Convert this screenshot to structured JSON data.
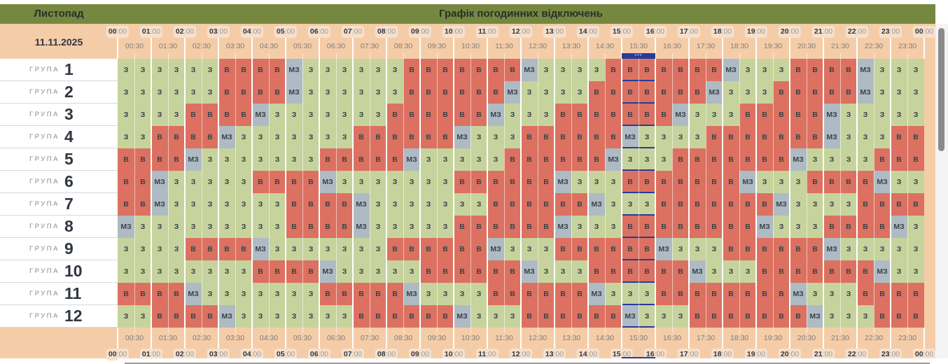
{
  "header": {
    "month": "Листопад",
    "title": "Графік погодинних відключень",
    "date": "11.11.2025"
  },
  "time": {
    "hours": [
      "00",
      "01",
      "02",
      "03",
      "04",
      "05",
      "06",
      "07",
      "08",
      "09",
      "10",
      "11",
      "12",
      "13",
      "14",
      "15",
      "16",
      "17",
      "18",
      "19",
      "20",
      "21",
      "22",
      "23",
      "00"
    ],
    "minutes_suffix": ":00",
    "half_labels": [
      "00:30",
      "01:30",
      "02:30",
      "03:30",
      "04:30",
      "05:30",
      "06:30",
      "07:30",
      "08:30",
      "09:30",
      "10:30",
      "11:30",
      "12:30",
      "13:30",
      "14:30",
      "15:30",
      "16:30",
      "17:30",
      "18:30",
      "19:30",
      "20:30",
      "21:30",
      "22:30",
      "23:30"
    ],
    "current_hour_index": 15,
    "current_marker": "•••"
  },
  "group_word": "ГРУПА",
  "colors": {
    "З": "#c6d39c",
    "В": "#dc7161",
    "МЗ": "#aebbc4",
    "header": "#76883f",
    "band": "#f4cda8",
    "now": "#2a3a99"
  },
  "groups": [
    {
      "number": "1",
      "cells": [
        "З",
        "З",
        "З",
        "З",
        "З",
        "З",
        "В",
        "В",
        "В",
        "В",
        "МЗ",
        "З",
        "З",
        "З",
        "З",
        "З",
        "З",
        "В",
        "В",
        "В",
        "В",
        "В",
        "В",
        "В",
        "МЗ",
        "З",
        "З",
        "З",
        "З",
        "В",
        "В",
        "В",
        "В",
        "В",
        "В",
        "В",
        "МЗ",
        "З",
        "З",
        "З",
        "В",
        "В",
        "В",
        "В",
        "МЗ",
        "З",
        "З",
        "З"
      ]
    },
    {
      "number": "2",
      "cells": [
        "З",
        "З",
        "З",
        "З",
        "З",
        "З",
        "В",
        "В",
        "В",
        "В",
        "МЗ",
        "З",
        "З",
        "З",
        "З",
        "З",
        "З",
        "В",
        "В",
        "В",
        "В",
        "В",
        "В",
        "МЗ",
        "З",
        "З",
        "З",
        "З",
        "В",
        "В",
        "В",
        "В",
        "В",
        "В",
        "В",
        "МЗ",
        "З",
        "З",
        "З",
        "В",
        "В",
        "В",
        "В",
        "В",
        "МЗ",
        "З",
        "З",
        "З"
      ]
    },
    {
      "number": "3",
      "cells": [
        "З",
        "З",
        "З",
        "З",
        "В",
        "В",
        "В",
        "В",
        "МЗ",
        "З",
        "З",
        "З",
        "З",
        "З",
        "З",
        "З",
        "В",
        "В",
        "В",
        "В",
        "В",
        "В",
        "МЗ",
        "З",
        "З",
        "З",
        "В",
        "В",
        "В",
        "В",
        "В",
        "В",
        "В",
        "МЗ",
        "З",
        "З",
        "З",
        "В",
        "В",
        "В",
        "В",
        "В",
        "МЗ",
        "З",
        "З",
        "З",
        "З",
        "З"
      ]
    },
    {
      "number": "4",
      "cells": [
        "З",
        "З",
        "В",
        "В",
        "В",
        "В",
        "МЗ",
        "З",
        "З",
        "З",
        "З",
        "З",
        "З",
        "З",
        "В",
        "В",
        "В",
        "В",
        "В",
        "В",
        "МЗ",
        "З",
        "З",
        "З",
        "В",
        "В",
        "В",
        "В",
        "В",
        "В",
        "МЗ",
        "З",
        "З",
        "З",
        "З",
        "В",
        "В",
        "В",
        "В",
        "В",
        "В",
        "В",
        "МЗ",
        "З",
        "З",
        "З",
        "В",
        "В"
      ]
    },
    {
      "number": "5",
      "cells": [
        "В",
        "В",
        "В",
        "В",
        "МЗ",
        "З",
        "З",
        "З",
        "З",
        "З",
        "З",
        "З",
        "В",
        "В",
        "В",
        "В",
        "В",
        "МЗ",
        "З",
        "З",
        "З",
        "З",
        "З",
        "В",
        "В",
        "В",
        "В",
        "В",
        "В",
        "МЗ",
        "З",
        "З",
        "З",
        "В",
        "В",
        "В",
        "В",
        "В",
        "В",
        "В",
        "МЗ",
        "З",
        "З",
        "З",
        "З",
        "В",
        "В",
        "В"
      ]
    },
    {
      "number": "6",
      "cells": [
        "В",
        "В",
        "МЗ",
        "З",
        "З",
        "З",
        "З",
        "З",
        "В",
        "В",
        "В",
        "В",
        "МЗ",
        "З",
        "З",
        "З",
        "З",
        "З",
        "З",
        "З",
        "В",
        "В",
        "В",
        "В",
        "В",
        "В",
        "МЗ",
        "З",
        "З",
        "З",
        "В",
        "В",
        "В",
        "В",
        "В",
        "В",
        "В",
        "МЗ",
        "З",
        "З",
        "З",
        "В",
        "В",
        "В",
        "В",
        "МЗ",
        "З",
        "З"
      ]
    },
    {
      "number": "7",
      "cells": [
        "В",
        "В",
        "МЗ",
        "З",
        "З",
        "З",
        "З",
        "З",
        "З",
        "З",
        "В",
        "В",
        "В",
        "В",
        "МЗ",
        "З",
        "З",
        "З",
        "З",
        "З",
        "З",
        "З",
        "В",
        "В",
        "В",
        "В",
        "В",
        "В",
        "МЗ",
        "З",
        "З",
        "З",
        "В",
        "В",
        "В",
        "В",
        "В",
        "В",
        "В",
        "МЗ",
        "З",
        "З",
        "З",
        "З",
        "В",
        "В",
        "В",
        "В"
      ]
    },
    {
      "number": "8",
      "cells": [
        "МЗ",
        "З",
        "З",
        "З",
        "З",
        "З",
        "З",
        "З",
        "З",
        "З",
        "В",
        "В",
        "В",
        "В",
        "МЗ",
        "З",
        "З",
        "З",
        "З",
        "З",
        "В",
        "В",
        "В",
        "В",
        "В",
        "В",
        "МЗ",
        "З",
        "З",
        "З",
        "В",
        "В",
        "В",
        "В",
        "В",
        "В",
        "В",
        "В",
        "МЗ",
        "З",
        "З",
        "З",
        "В",
        "В",
        "В",
        "В",
        "МЗ",
        "З"
      ]
    },
    {
      "number": "9",
      "cells": [
        "З",
        "З",
        "З",
        "З",
        "В",
        "В",
        "В",
        "В",
        "МЗ",
        "З",
        "З",
        "З",
        "З",
        "З",
        "З",
        "З",
        "В",
        "В",
        "В",
        "В",
        "В",
        "В",
        "МЗ",
        "З",
        "З",
        "З",
        "В",
        "В",
        "В",
        "В",
        "В",
        "В",
        "МЗ",
        "З",
        "З",
        "З",
        "В",
        "В",
        "В",
        "В",
        "В",
        "В",
        "МЗ",
        "З",
        "З",
        "З",
        "З",
        "З"
      ]
    },
    {
      "number": "10",
      "cells": [
        "З",
        "З",
        "З",
        "З",
        "З",
        "З",
        "З",
        "З",
        "В",
        "В",
        "В",
        "В",
        "МЗ",
        "З",
        "З",
        "З",
        "З",
        "З",
        "В",
        "В",
        "В",
        "В",
        "В",
        "В",
        "МЗ",
        "З",
        "З",
        "З",
        "В",
        "В",
        "В",
        "В",
        "В",
        "В",
        "МЗ",
        "З",
        "З",
        "З",
        "В",
        "В",
        "В",
        "В",
        "В",
        "В",
        "В",
        "МЗ",
        "З",
        "З"
      ]
    },
    {
      "number": "11",
      "cells": [
        "В",
        "В",
        "В",
        "В",
        "МЗ",
        "З",
        "З",
        "З",
        "З",
        "З",
        "З",
        "З",
        "В",
        "В",
        "В",
        "В",
        "В",
        "МЗ",
        "З",
        "З",
        "З",
        "З",
        "В",
        "В",
        "В",
        "В",
        "В",
        "В",
        "МЗ",
        "З",
        "З",
        "З",
        "В",
        "В",
        "В",
        "В",
        "В",
        "В",
        "В",
        "В",
        "МЗ",
        "З",
        "З",
        "З",
        "В",
        "В",
        "В",
        "В"
      ]
    },
    {
      "number": "12",
      "cells": [
        "З",
        "З",
        "В",
        "В",
        "В",
        "В",
        "МЗ",
        "З",
        "З",
        "З",
        "З",
        "З",
        "З",
        "З",
        "В",
        "В",
        "В",
        "В",
        "В",
        "В",
        "МЗ",
        "З",
        "З",
        "З",
        "В",
        "В",
        "В",
        "В",
        "В",
        "В",
        "МЗ",
        "З",
        "З",
        "З",
        "В",
        "В",
        "В",
        "В",
        "В",
        "В",
        "В",
        "МЗ",
        "З",
        "З",
        "З",
        "В",
        "В",
        "В"
      ]
    }
  ]
}
